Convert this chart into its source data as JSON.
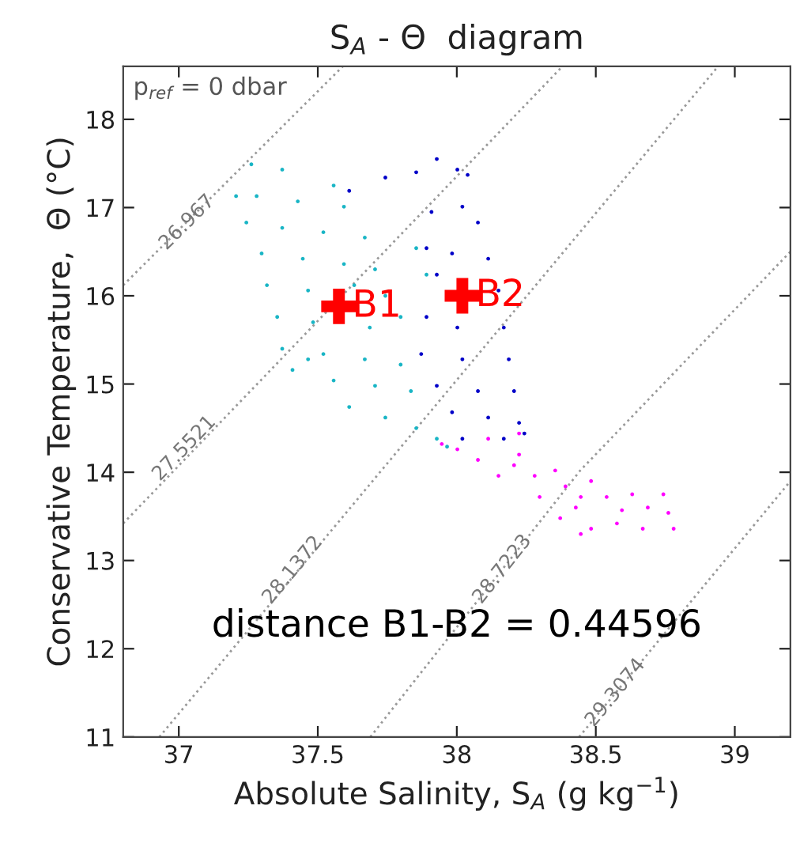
{
  "chart_data": {
    "type": "scatter",
    "title": "S$_{A}$ - Θ  diagram",
    "xlabel": "Absolute Salinity, S$_{A}$ (g kg$^{−1}$)",
    "ylabel": "Conservative Temperature,  Θ (°C)",
    "xlim": [
      36.8,
      39.2
    ],
    "ylim": [
      11,
      18.6
    ],
    "xticks": [
      37,
      37.5,
      38,
      38.5,
      39
    ],
    "yticks": [
      11,
      12,
      13,
      14,
      15,
      16,
      17,
      18
    ],
    "grid": false,
    "legend": false,
    "series": [
      {
        "type": "line",
        "color": "#999999",
        "line_style": "dotted",
        "marker": "none",
        "x": [
          36.8,
          37.59
        ],
        "values": [
          16.12,
          18.6
        ]
      },
      {
        "type": "line",
        "color": "#999999",
        "line_style": "dotted",
        "marker": "none",
        "x": [
          36.8,
          38.38
        ],
        "values": [
          13.42,
          18.6
        ]
      },
      {
        "type": "line",
        "color": "#999999",
        "line_style": "dotted",
        "marker": "none",
        "x": [
          36.93,
          38.94
        ],
        "values": [
          11,
          18.6
        ]
      },
      {
        "type": "line",
        "color": "#999999",
        "line_style": "dotted",
        "marker": "none",
        "x": [
          37.689,
          38.444,
          39.2
        ],
        "values": [
          11.0,
          14.02,
          16.5
        ]
      },
      {
        "type": "line",
        "color": "#999999",
        "line_style": "dotted",
        "marker": "none",
        "x": [
          38.44,
          39.2
        ],
        "values": [
          11.0,
          13.9
        ]
      },
      {
        "color": "#19b5c5",
        "marker": "circle",
        "x": [
          37.261,
          37.372,
          37.557,
          37.28,
          37.428,
          37.594,
          37.243,
          37.372,
          37.52,
          37.669,
          37.298,
          37.446,
          37.594,
          37.706,
          37.317,
          37.465,
          37.631,
          37.743,
          37.354,
          37.483,
          37.687,
          37.798,
          37.372,
          37.52,
          37.669,
          37.798,
          37.409,
          37.557,
          37.706,
          37.835,
          37.613,
          37.743,
          37.854,
          37.928,
          37.965,
          37.891,
          37.854,
          37.465,
          37.206
        ],
        "values": [
          17.49,
          17.43,
          17.25,
          17.13,
          17.07,
          17.01,
          16.83,
          16.77,
          16.72,
          16.66,
          16.48,
          16.42,
          16.36,
          16.3,
          16.12,
          16.06,
          16.12,
          16.0,
          15.76,
          15.7,
          15.64,
          15.76,
          15.4,
          15.34,
          15.28,
          15.22,
          15.16,
          15.04,
          14.98,
          14.92,
          14.74,
          14.62,
          14.5,
          14.38,
          14.29,
          16.24,
          16.54,
          15.28,
          17.13
        ]
      },
      {
        "color": "#0000c8",
        "marker": "circle",
        "x": [
          37.928,
          38.002,
          38.039,
          37.613,
          37.743,
          37.854,
          37.909,
          38.02,
          38.076,
          37.891,
          37.983,
          38.113,
          37.928,
          38.15,
          37.891,
          38.002,
          38.169,
          37.872,
          38.02,
          38.187,
          37.928,
          38.076,
          38.206,
          37.983,
          38.113,
          38.224,
          38.02,
          38.169,
          38.243
        ],
        "values": [
          17.55,
          17.43,
          17.37,
          17.19,
          17.34,
          17.4,
          16.95,
          17.01,
          16.83,
          16.54,
          16.48,
          16.42,
          16.24,
          16.06,
          15.76,
          15.64,
          15.64,
          15.34,
          15.28,
          15.28,
          14.98,
          14.92,
          14.92,
          14.68,
          14.62,
          14.56,
          14.38,
          14.38,
          14.44
        ]
      },
      {
        "color": "#ff00ff",
        "marker": "circle",
        "x": [
          37.946,
          38.002,
          38.113,
          38.224,
          38.076,
          38.206,
          38.28,
          38.224,
          38.354,
          38.391,
          38.483,
          38.298,
          38.428,
          38.539,
          38.631,
          38.743,
          38.761,
          38.78,
          38.669,
          38.576,
          38.483,
          38.446,
          38.372,
          38.594,
          38.687,
          38.15,
          38.446
        ],
        "values": [
          14.32,
          14.26,
          14.38,
          14.44,
          14.14,
          14.08,
          13.96,
          14.2,
          14.02,
          13.84,
          13.9,
          13.72,
          13.6,
          13.72,
          13.75,
          13.75,
          13.54,
          13.36,
          13.36,
          13.42,
          13.36,
          13.3,
          13.48,
          13.57,
          13.6,
          13.96,
          13.72
        ]
      },
      {
        "name": "B1",
        "color": "#ff0000",
        "marker": "cross",
        "x": [
          37.576
        ],
        "values": [
          15.88
        ]
      },
      {
        "name": "B2",
        "color": "#ff0000",
        "marker": "cross",
        "x": [
          38.02
        ],
        "values": [
          16.0
        ]
      }
    ],
    "annotations": [
      "p$_{ref}$ = 0 dbar",
      "distance B1-B2 = 0.44596",
      {
        "text": "26.967",
        "x": 37.03,
        "y": 16.83
      },
      {
        "text": "27.5521",
        "x": 37.02,
        "y": 14.27
      },
      {
        "text": "28.1372",
        "x": 37.41,
        "y": 12.89
      },
      {
        "text": "28.7223",
        "x": 38.164,
        "y": 12.9
      },
      {
        "text": "29.3074",
        "x": 38.571,
        "y": 11.5
      }
    ]
  }
}
